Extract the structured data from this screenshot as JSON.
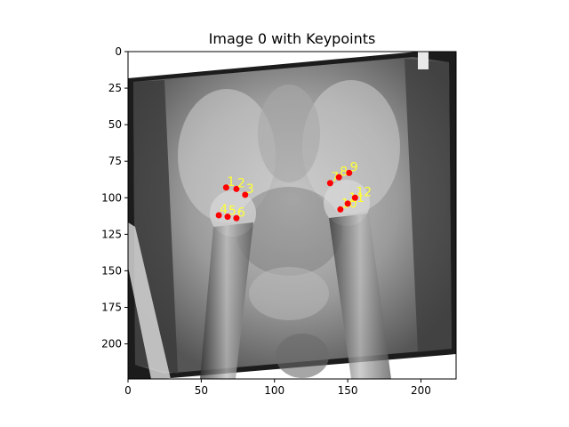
{
  "chart_data": {
    "type": "scatter",
    "title": "Image 0 with Keypoints",
    "xlabel": "",
    "ylabel": "",
    "xlim": [
      0,
      224
    ],
    "ylim": [
      224,
      0
    ],
    "grid": false,
    "x_ticks": [
      0,
      50,
      100,
      150,
      200
    ],
    "y_ticks": [
      0,
      25,
      50,
      75,
      100,
      125,
      150,
      175,
      200
    ],
    "background": "pelvis x-ray image (grayscale)",
    "marker_color": "#ff0000",
    "label_color": "#ffff33",
    "points": [
      {
        "label": "1",
        "x": 67,
        "y": 93
      },
      {
        "label": "2",
        "x": 74,
        "y": 94
      },
      {
        "label": "3",
        "x": 80,
        "y": 98
      },
      {
        "label": "4",
        "x": 62,
        "y": 112
      },
      {
        "label": "5",
        "x": 68,
        "y": 113
      },
      {
        "label": "6",
        "x": 74,
        "y": 114
      },
      {
        "label": "7",
        "x": 138,
        "y": 90
      },
      {
        "label": "8",
        "x": 144,
        "y": 86
      },
      {
        "label": "9",
        "x": 151,
        "y": 83
      },
      {
        "label": "10",
        "x": 145,
        "y": 108
      },
      {
        "label": "11",
        "x": 150,
        "y": 104
      },
      {
        "label": "12",
        "x": 155,
        "y": 100
      }
    ]
  }
}
